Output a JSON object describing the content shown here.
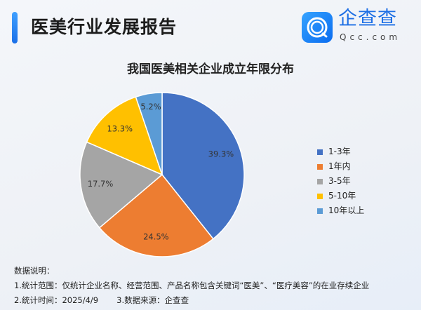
{
  "header": {
    "title": "医美行业发展报告",
    "brand": "企查查",
    "brand_domain": "Qcc.com",
    "accent": "#1a6fe8"
  },
  "chart_data": {
    "type": "pie",
    "title": "我国医美相关企业成立年限分布",
    "categories": [
      "1-3年",
      "1年内",
      "3-5年",
      "5-10年",
      "10年以上"
    ],
    "values": [
      39.3,
      24.5,
      17.7,
      13.3,
      5.2
    ],
    "labels": [
      "39.3%",
      "24.5%",
      "17.7%",
      "13.3%",
      "5.2%"
    ],
    "colors": [
      "#4472c4",
      "#ed7d31",
      "#a5a5a5",
      "#ffc000",
      "#5b9bd5"
    ],
    "start": "12 o'clock, clockwise",
    "legend_position": "right"
  },
  "notes": {
    "heading": "数据说明：",
    "line1": "1.统计范围：仅统计企业名称、经营范围、产品名称包含关键词“医美”、“医疗美容”的在业存续企业",
    "time": "2.统计时间：2025/4/9",
    "source": "3.数据来源：企查查"
  }
}
